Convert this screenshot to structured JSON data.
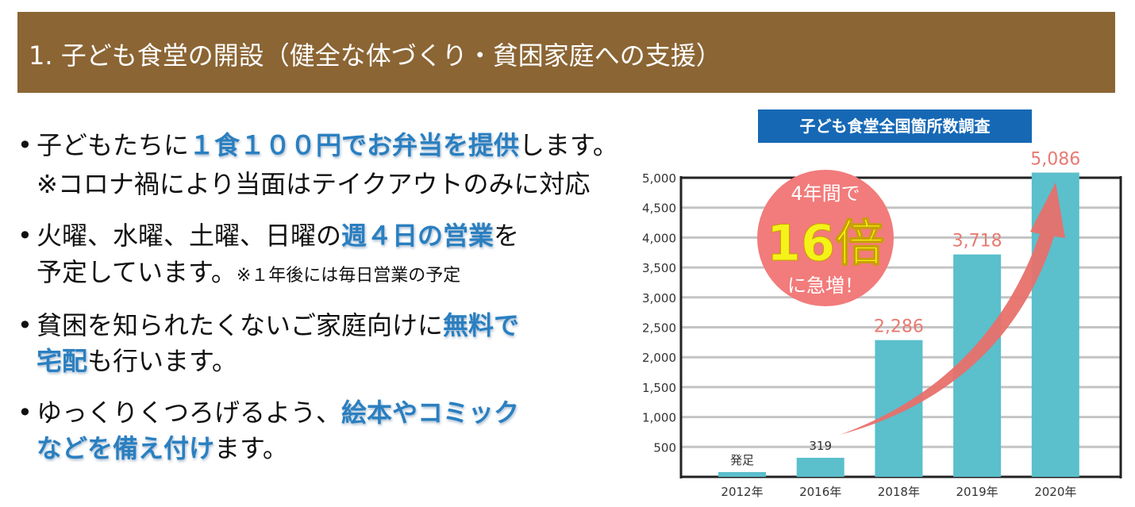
{
  "title": "1. 子ども食堂の開設（健全な体づくり・貧困家庭への支援）",
  "bullets": [
    {
      "pre": "子どもたちに",
      "hl": "１食１００円でお弁当を提供",
      "post": "します。",
      "note": "※コロナ禍により当面はテイクアウトのみに対応"
    },
    {
      "pre": "火曜、水曜、土曜、日曜の",
      "hl": "週４日の営業",
      "post": "を",
      "line2": "予定しています。",
      "note": "※１年後には毎日営業の予定"
    },
    {
      "pre": "貧困を知られたくないご家庭向けに",
      "hl": "無料で",
      "hl2": "宅配",
      "post2": "も行います。"
    },
    {
      "pre": "ゆっくりくつろげるよう、",
      "hl": "絵本やコミック",
      "hl2": "などを備え付け",
      "post2": "ます。"
    }
  ],
  "bullet_symbol": "•",
  "colors": {
    "title_bg": "#8b6534",
    "highlight": "#2a7fc0",
    "bar": "#5bbfcc",
    "value_label": "#e87a72",
    "circle": "#f27b7b",
    "arrow": "#e8706a",
    "chart_title_bg": "#1668b5"
  },
  "chart_data": {
    "type": "bar",
    "title": "子ども食堂全国箇所数調査",
    "categories": [
      "2012年",
      "2016年",
      "2018年",
      "2019年",
      "2020年"
    ],
    "values": [
      null,
      319,
      2286,
      3718,
      5086
    ],
    "value_labels": [
      "発足",
      "319",
      "2,286",
      "3,718",
      "5,086"
    ],
    "yticks": [
      "500",
      "1,000",
      "1,500",
      "2,000",
      "2,500",
      "3,000",
      "3,500",
      "4,000",
      "4,500",
      "5,000"
    ],
    "ylim": [
      0,
      5000
    ],
    "grid": true,
    "annotation": {
      "line1": "4年間で",
      "line2": "16倍",
      "line3": "に急増！"
    }
  }
}
